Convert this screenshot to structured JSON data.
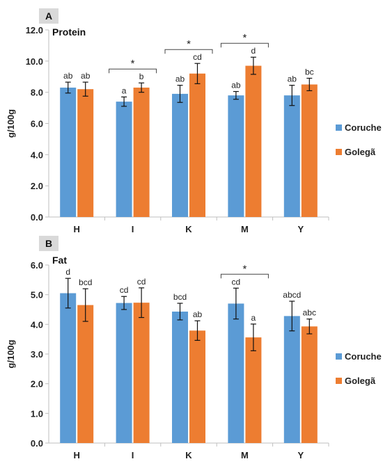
{
  "colors": {
    "coruche": "#5b9bd5",
    "golega": "#ed7d31",
    "axis": "#bfbfbf",
    "text": "#222222",
    "letter_box": "#d9d9d9"
  },
  "chart_data": [
    {
      "type": "bar",
      "panel": "A",
      "title": "Protein",
      "xlabel": "",
      "ylabel": "g/100g",
      "ylim": [
        0,
        12
      ],
      "yticks": [
        "0.0",
        "2.0",
        "4.0",
        "6.0",
        "8.0",
        "10.0",
        "12.0"
      ],
      "categories": [
        "H",
        "I",
        "K",
        "M",
        "Y"
      ],
      "legend": "right",
      "series": [
        {
          "name": "Coruche",
          "values": [
            8.3,
            7.4,
            7.9,
            7.8,
            7.8
          ],
          "errors": [
            0.35,
            0.3,
            0.55,
            0.25,
            0.65
          ],
          "letters": [
            "ab",
            "a",
            "ab",
            "ab",
            "ab"
          ]
        },
        {
          "name": "Golegã",
          "values": [
            8.2,
            8.3,
            9.2,
            9.7,
            8.5
          ],
          "errors": [
            0.45,
            0.3,
            0.65,
            0.55,
            0.4
          ],
          "letters": [
            "ab",
            "b",
            "cd",
            "d",
            "bc"
          ]
        }
      ],
      "significance": [
        {
          "category": "I",
          "label": "*"
        },
        {
          "category": "K",
          "label": "*"
        },
        {
          "category": "M",
          "label": "*"
        }
      ]
    },
    {
      "type": "bar",
      "panel": "B",
      "title": "Fat",
      "xlabel": "",
      "ylabel": "g/100g",
      "ylim": [
        0,
        6
      ],
      "yticks": [
        "0.0",
        "1.0",
        "2.0",
        "3.0",
        "4.0",
        "5.0",
        "6.0"
      ],
      "categories": [
        "H",
        "I",
        "K",
        "M",
        "Y"
      ],
      "legend": "right",
      "series": [
        {
          "name": "Coruche",
          "values": [
            5.05,
            4.72,
            4.43,
            4.7,
            4.28
          ],
          "errors": [
            0.5,
            0.22,
            0.28,
            0.52,
            0.5
          ],
          "letters": [
            "d",
            "cd",
            "bcd",
            "cd",
            "abcd"
          ]
        },
        {
          "name": "Golegã",
          "values": [
            4.65,
            4.73,
            3.79,
            3.56,
            3.93
          ],
          "errors": [
            0.55,
            0.5,
            0.33,
            0.45,
            0.25
          ],
          "letters": [
            "bcd",
            "cd",
            "ab",
            "a",
            "abc"
          ]
        }
      ],
      "significance": [
        {
          "category": "M",
          "label": "*"
        }
      ]
    }
  ]
}
